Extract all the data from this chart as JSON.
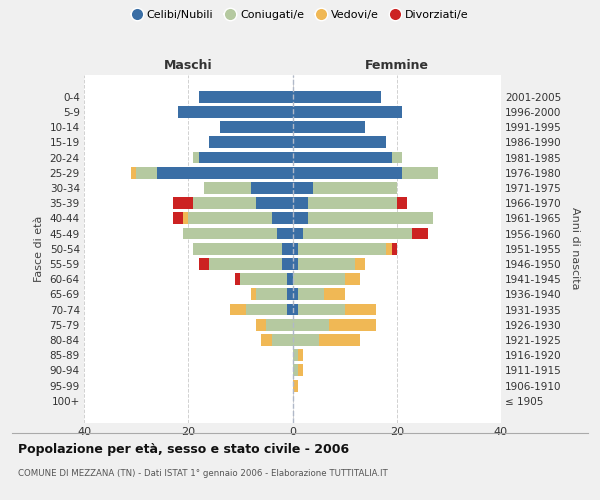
{
  "age_groups": [
    "100+",
    "95-99",
    "90-94",
    "85-89",
    "80-84",
    "75-79",
    "70-74",
    "65-69",
    "60-64",
    "55-59",
    "50-54",
    "45-49",
    "40-44",
    "35-39",
    "30-34",
    "25-29",
    "20-24",
    "15-19",
    "10-14",
    "5-9",
    "0-4"
  ],
  "birth_years": [
    "≤ 1905",
    "1906-1910",
    "1911-1915",
    "1916-1920",
    "1921-1925",
    "1926-1930",
    "1931-1935",
    "1936-1940",
    "1941-1945",
    "1946-1950",
    "1951-1955",
    "1956-1960",
    "1961-1965",
    "1966-1970",
    "1971-1975",
    "1976-1980",
    "1981-1985",
    "1986-1990",
    "1991-1995",
    "1996-2000",
    "2001-2005"
  ],
  "male": {
    "celibi": [
      0,
      0,
      0,
      0,
      0,
      0,
      1,
      1,
      1,
      2,
      2,
      3,
      4,
      7,
      8,
      26,
      18,
      16,
      14,
      22,
      18
    ],
    "coniugati": [
      0,
      0,
      0,
      0,
      4,
      5,
      8,
      6,
      9,
      14,
      17,
      18,
      16,
      12,
      9,
      4,
      1,
      0,
      0,
      0,
      0
    ],
    "vedovi": [
      0,
      0,
      0,
      0,
      2,
      2,
      3,
      1,
      0,
      0,
      0,
      0,
      1,
      0,
      0,
      1,
      0,
      0,
      0,
      0,
      0
    ],
    "divorziati": [
      0,
      0,
      0,
      0,
      0,
      0,
      0,
      0,
      1,
      2,
      0,
      0,
      2,
      4,
      0,
      0,
      0,
      0,
      0,
      0,
      0
    ]
  },
  "female": {
    "nubili": [
      0,
      0,
      0,
      0,
      0,
      0,
      1,
      1,
      0,
      1,
      1,
      2,
      3,
      3,
      4,
      21,
      19,
      18,
      14,
      21,
      17
    ],
    "coniugate": [
      0,
      0,
      1,
      1,
      5,
      7,
      9,
      5,
      10,
      11,
      17,
      21,
      24,
      17,
      16,
      7,
      2,
      0,
      0,
      0,
      0
    ],
    "vedove": [
      0,
      1,
      1,
      1,
      8,
      9,
      6,
      4,
      3,
      2,
      1,
      0,
      0,
      0,
      0,
      0,
      0,
      0,
      0,
      0,
      0
    ],
    "divorziate": [
      0,
      0,
      0,
      0,
      0,
      0,
      0,
      0,
      0,
      0,
      1,
      3,
      0,
      2,
      0,
      0,
      0,
      0,
      0,
      0,
      0
    ]
  },
  "color_celibi": "#3a6ea5",
  "color_coniugati": "#b5c9a0",
  "color_vedovi": "#f0b855",
  "color_divorziati": "#cc2222",
  "title": "Popolazione per età, sesso e stato civile - 2006",
  "subtitle": "COMUNE DI MEZZANA (TN) - Dati ISTAT 1° gennaio 2006 - Elaborazione TUTTITALIA.IT",
  "label_maschi": "Maschi",
  "label_femmine": "Femmine",
  "ylabel_left": "Fasce di età",
  "ylabel_right": "Anni di nascita",
  "xlim": 40,
  "bg_color": "#f0f0f0",
  "plot_bg_color": "#ffffff",
  "grid_color": "#cccccc"
}
